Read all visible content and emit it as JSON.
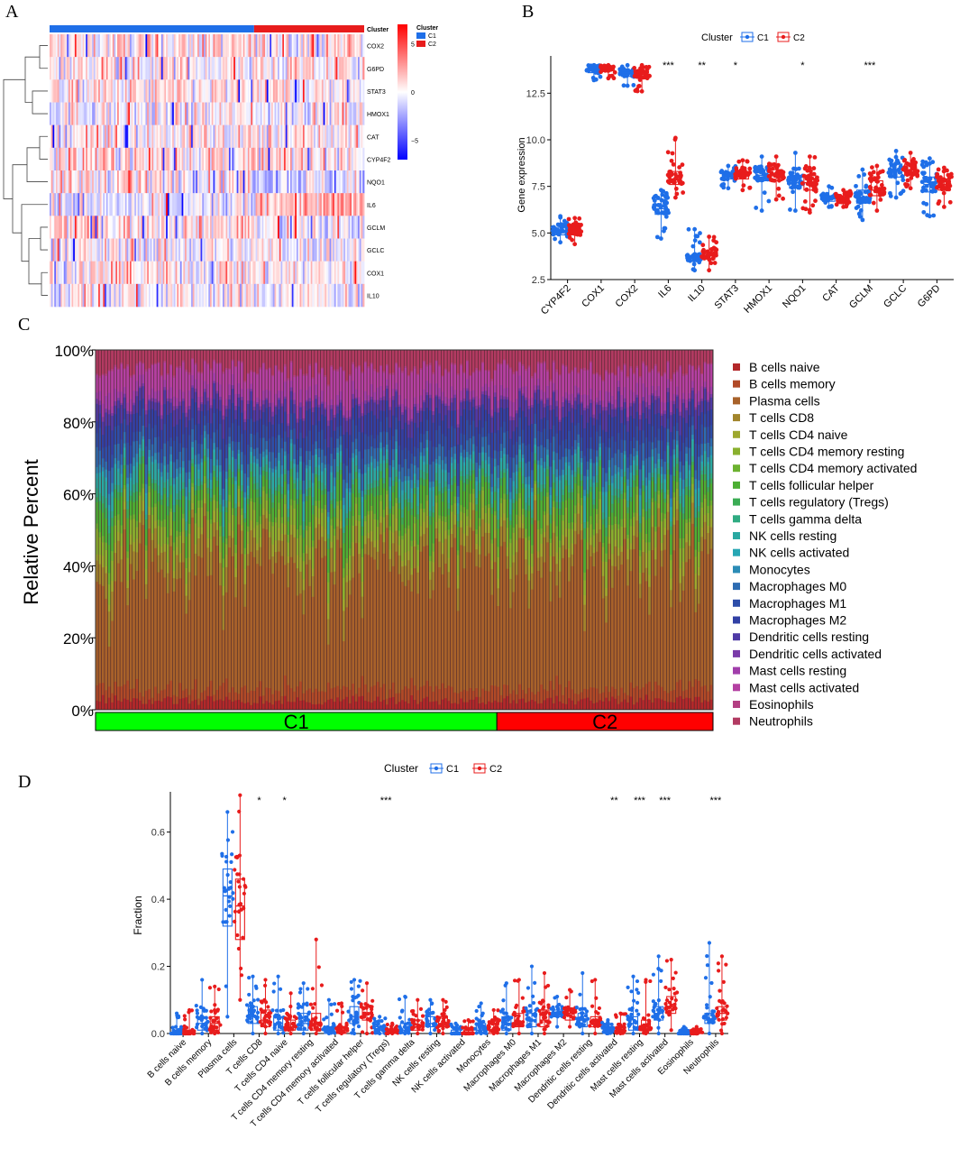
{
  "panel_labels": [
    "A",
    "B",
    "C",
    "D"
  ],
  "chart_data": [
    {
      "panel": "A",
      "type": "heatmap",
      "title": "",
      "annotation_label": "Cluster",
      "legend": {
        "title": "Cluster",
        "entries": [
          "C1",
          "C2"
        ],
        "colors": [
          "#1f6fe8",
          "#e81c1c"
        ]
      },
      "color_scale": {
        "ticks": [
          "5",
          "0",
          "−5"
        ],
        "values": [
          5,
          0,
          -5
        ],
        "low": "#0000ff",
        "mid": "#ffffff",
        "high": "#ff0000"
      },
      "rows": [
        "COX2",
        "G6PD",
        "STAT3",
        "HMOX1",
        "CAT",
        "CYP4F2",
        "NQO1",
        "IL6",
        "GCLM",
        "GCLC",
        "COX1",
        "IL10"
      ],
      "columns": {
        "C1": 130,
        "C2": 70
      }
    },
    {
      "panel": "B",
      "type": "box",
      "legend_title": "Cluster",
      "legend": [
        "C1",
        "C2"
      ],
      "colors": [
        "#1f6fe8",
        "#e81c1c"
      ],
      "ylabel": "Gene expression",
      "ylim": [
        2.5,
        14.5
      ],
      "yticks": [
        "2.5",
        "5.0",
        "7.5",
        "10.0",
        "12.5"
      ],
      "categories": [
        "CYP4F2",
        "COX1",
        "COX2",
        "IL6",
        "IL10",
        "STAT3",
        "HMOX1",
        "NQO1",
        "CAT",
        "GCLM",
        "GCLC",
        "G6PD"
      ],
      "significance": [
        "",
        "",
        "",
        "***",
        "**",
        "*",
        "",
        "*",
        "",
        "***",
        "",
        ""
      ],
      "series": [
        {
          "name": "C1",
          "stats": [
            [
              4.5,
              4.9,
              5.1,
              5.3,
              5.9
            ],
            [
              13.2,
              13.6,
              13.8,
              13.9,
              14.0
            ],
            [
              12.9,
              13.4,
              13.6,
              13.7,
              14.0
            ],
            [
              4.7,
              6.0,
              6.3,
              6.8,
              7.3
            ],
            [
              3.0,
              3.5,
              3.7,
              3.8,
              5.2
            ],
            [
              7.4,
              7.9,
              8.1,
              8.2,
              8.6
            ],
            [
              6.2,
              7.8,
              8.1,
              8.4,
              9.1
            ],
            [
              6.2,
              7.4,
              7.7,
              8.1,
              9.3
            ],
            [
              6.4,
              6.7,
              6.9,
              7.0,
              7.5
            ],
            [
              5.7,
              6.6,
              6.9,
              7.3,
              8.4
            ],
            [
              6.9,
              8.0,
              8.4,
              8.7,
              9.4
            ],
            [
              5.9,
              7.2,
              7.6,
              8.0,
              9.0
            ]
          ]
        },
        {
          "name": "C2",
          "stats": [
            [
              4.4,
              4.9,
              5.1,
              5.3,
              5.8
            ],
            [
              13.3,
              13.7,
              13.8,
              13.9,
              14.0
            ],
            [
              12.6,
              13.3,
              13.5,
              13.7,
              14.0
            ],
            [
              6.9,
              7.6,
              7.9,
              8.3,
              10.1
            ],
            [
              3.0,
              3.6,
              3.8,
              4.0,
              4.8
            ],
            [
              7.3,
              7.9,
              8.1,
              8.3,
              8.9
            ],
            [
              6.8,
              7.8,
              8.1,
              8.4,
              9.1
            ],
            [
              6.1,
              7.3,
              7.7,
              8.1,
              9.1
            ],
            [
              6.4,
              6.6,
              6.8,
              7.0,
              7.3
            ],
            [
              6.2,
              7.0,
              7.3,
              7.8,
              8.6
            ],
            [
              7.4,
              8.1,
              8.4,
              8.7,
              9.3
            ],
            [
              6.4,
              7.3,
              7.6,
              7.9,
              8.5
            ]
          ]
        }
      ]
    },
    {
      "panel": "C",
      "type": "bar",
      "stacked": true,
      "ylabel": "Relative Percent",
      "yticks": [
        "0%",
        "20%",
        "40%",
        "60%",
        "80%",
        "100%"
      ],
      "groups": [
        {
          "label": "C1",
          "samples": 130,
          "color": "#00ff00"
        },
        {
          "label": "C2",
          "samples": 70,
          "color": "#ff0000"
        }
      ],
      "legend": [
        "B cells naive",
        "B cells memory",
        "Plasma cells",
        "T cells CD8",
        "T cells CD4 naive",
        "T cells CD4 memory resting",
        "T cells CD4 memory activated",
        "T cells follicular helper",
        "T cells regulatory (Tregs)",
        "T cells gamma delta",
        "NK cells resting",
        "NK cells activated",
        "Monocytes",
        "Macrophages M0",
        "Macrophages M1",
        "Macrophages M2",
        "Dendritic cells resting",
        "Dendritic cells activated",
        "Mast cells resting",
        "Mast cells activated",
        "Eosinophils",
        "Neutrophils"
      ],
      "colors": [
        "#b3282a",
        "#b14a27",
        "#a8622a",
        "#a2852c",
        "#9ea82e",
        "#89b02e",
        "#6cb230",
        "#4daf34",
        "#3aac54",
        "#2fab82",
        "#2aa9a2",
        "#27a7b4",
        "#2b8cb6",
        "#2d6cb2",
        "#2d4ea9",
        "#3140a5",
        "#4f3aa6",
        "#7a3ba9",
        "#a13eab",
        "#b440a2",
        "#b33f83",
        "#b23a62"
      ],
      "mean_fractions": [
        0.03,
        0.04,
        0.4,
        0.06,
        0.03,
        0.05,
        0.02,
        0.06,
        0.02,
        0.02,
        0.04,
        0.01,
        0.02,
        0.04,
        0.05,
        0.06,
        0.04,
        0.01,
        0.03,
        0.07,
        0.005,
        0.06
      ]
    },
    {
      "panel": "D",
      "type": "box",
      "legend_title": "Cluster",
      "legend": [
        "C1",
        "C2"
      ],
      "colors": [
        "#1f6fe8",
        "#e81c1c"
      ],
      "ylabel": "Fraction",
      "ylim": [
        0,
        0.72
      ],
      "yticks": [
        "0.0",
        "0.2",
        "0.4",
        "0.6"
      ],
      "categories": [
        "B cells naive",
        "B cells memory",
        "Plasma cells",
        "T cells CD8",
        "T cells CD4 naive",
        "T cells CD4 memory resting",
        "T cells CD4 memory activated",
        "T cells follicular helper",
        "T cells regulatory (Tregs)",
        "T cells gamma delta",
        "NK cells resting",
        "NK cells activated",
        "Monocytes",
        "Macrophages M0",
        "Macrophages M1",
        "Macrophages M2",
        "Dendritic cells resting",
        "Dendritic cells activated",
        "Mast cells resting",
        "Mast cells activated",
        "Eosinophils",
        "Neutrophils"
      ],
      "significance": [
        "",
        "",
        "",
        "*",
        "*",
        "",
        "",
        "",
        "***",
        "",
        "",
        "",
        "",
        "",
        "",
        "",
        "",
        "**",
        "***",
        "***",
        "",
        "***"
      ],
      "series": [
        {
          "name": "C1",
          "stats": [
            [
              0,
              0,
              0.0,
              0.01,
              0.06
            ],
            [
              0,
              0.01,
              0.03,
              0.05,
              0.16
            ],
            [
              0.05,
              0.32,
              0.41,
              0.49,
              0.66
            ],
            [
              0,
              0.03,
              0.05,
              0.08,
              0.17
            ],
            [
              0,
              0.01,
              0.03,
              0.05,
              0.17
            ],
            [
              0,
              0.01,
              0.03,
              0.06,
              0.15
            ],
            [
              0,
              0,
              0.01,
              0.02,
              0.1
            ],
            [
              0,
              0.03,
              0.05,
              0.08,
              0.16
            ],
            [
              0,
              0,
              0.01,
              0.02,
              0.05
            ],
            [
              0,
              0,
              0.01,
              0.03,
              0.11
            ],
            [
              0,
              0.02,
              0.03,
              0.05,
              0.1
            ],
            [
              0,
              0,
              0,
              0.01,
              0.03
            ],
            [
              0,
              0,
              0.01,
              0.03,
              0.09
            ],
            [
              0,
              0.01,
              0.03,
              0.05,
              0.15
            ],
            [
              0,
              0.02,
              0.04,
              0.06,
              0.2
            ],
            [
              0.02,
              0.05,
              0.06,
              0.07,
              0.11
            ],
            [
              0,
              0.02,
              0.04,
              0.06,
              0.18
            ],
            [
              0,
              0,
              0.01,
              0.02,
              0.04
            ],
            [
              0,
              0.01,
              0.03,
              0.05,
              0.17
            ],
            [
              0,
              0.04,
              0.06,
              0.08,
              0.23
            ],
            [
              0,
              0,
              0,
              0.005,
              0.02
            ],
            [
              0,
              0.03,
              0.04,
              0.06,
              0.27
            ]
          ]
        },
        {
          "name": "C2",
          "stats": [
            [
              0,
              0,
              0.0,
              0.01,
              0.07
            ],
            [
              0,
              0.01,
              0.03,
              0.05,
              0.14
            ],
            [
              0.1,
              0.28,
              0.38,
              0.46,
              0.71
            ],
            [
              0,
              0.02,
              0.04,
              0.07,
              0.16
            ],
            [
              0,
              0.01,
              0.02,
              0.04,
              0.12
            ],
            [
              0,
              0.01,
              0.03,
              0.06,
              0.28
            ],
            [
              0,
              0,
              0.01,
              0.02,
              0.09
            ],
            [
              0,
              0.04,
              0.06,
              0.08,
              0.15
            ],
            [
              0,
              0,
              0.01,
              0.01,
              0.03
            ],
            [
              0,
              0.01,
              0.02,
              0.04,
              0.1
            ],
            [
              0,
              0.02,
              0.03,
              0.05,
              0.1
            ],
            [
              0,
              0,
              0,
              0.01,
              0.04
            ],
            [
              0,
              0,
              0.01,
              0.03,
              0.07
            ],
            [
              0,
              0.02,
              0.03,
              0.06,
              0.16
            ],
            [
              0,
              0.02,
              0.04,
              0.07,
              0.18
            ],
            [
              0.02,
              0.04,
              0.06,
              0.07,
              0.13
            ],
            [
              0,
              0.02,
              0.03,
              0.05,
              0.16
            ],
            [
              0,
              0,
              0.01,
              0.02,
              0.06
            ],
            [
              0,
              0.01,
              0.02,
              0.04,
              0.16
            ],
            [
              0.01,
              0.06,
              0.08,
              0.11,
              0.22
            ],
            [
              0,
              0,
              0,
              0.005,
              0.02
            ],
            [
              0,
              0.04,
              0.06,
              0.08,
              0.23
            ]
          ]
        }
      ]
    }
  ]
}
